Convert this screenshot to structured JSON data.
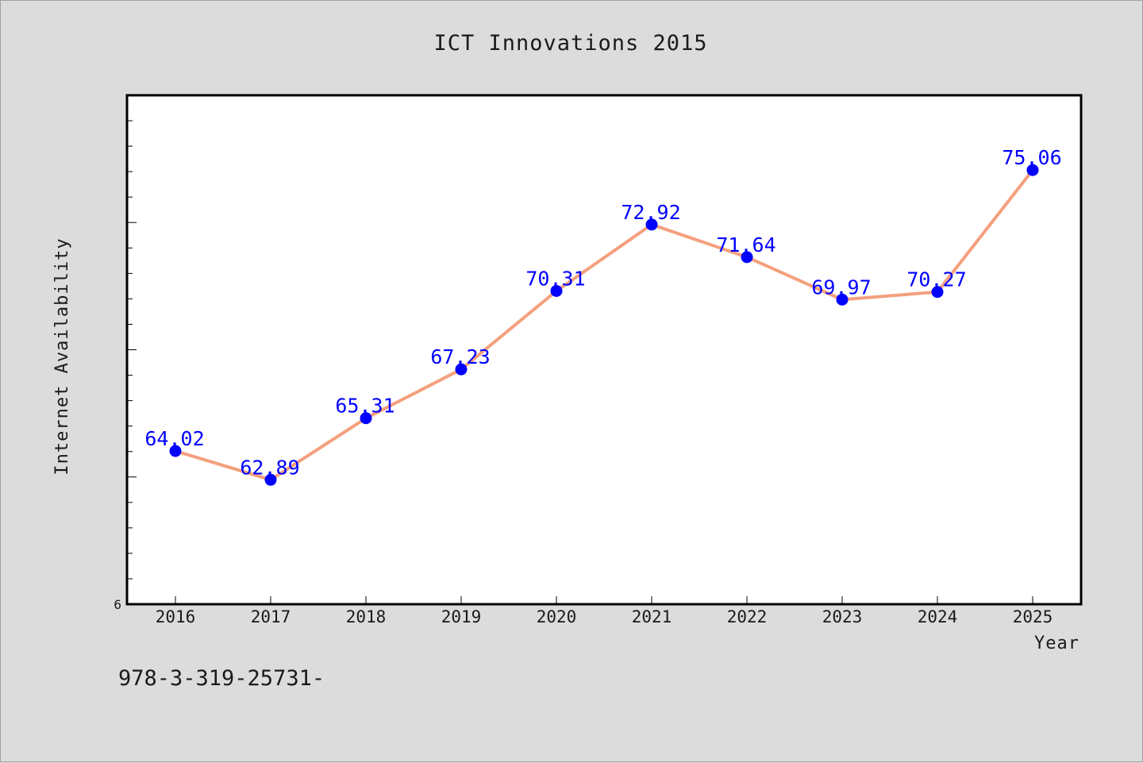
{
  "chart_data": {
    "type": "line",
    "title": "ICT Innovations 2015",
    "xlabel": "Year",
    "ylabel": "Internet Availability",
    "categories": [
      "2016",
      "2017",
      "2018",
      "2019",
      "2020",
      "2021",
      "2022",
      "2023",
      "2024",
      "2025"
    ],
    "series": [
      {
        "values": [
          64.02,
          62.89,
          65.31,
          67.23,
          70.31,
          72.92,
          71.64,
          69.97,
          70.27,
          75.06
        ]
      }
    ],
    "data_labels": [
      "64.02",
      "62.89",
      "65.31",
      "67.23",
      "70.31",
      "72.92",
      "71.64",
      "69.97",
      "70.27",
      "75.06"
    ],
    "ylim": [
      58,
      78
    ],
    "y_tick_labels": [
      "6"
    ],
    "grid": false,
    "line_color": "#f4a07e",
    "marker_color": "#0000ff",
    "label_color": "#0000ff",
    "background_color": "#dcdcdc",
    "plot_background": "#ffffff"
  },
  "footer": {
    "text": "978-3-319-25731-"
  }
}
